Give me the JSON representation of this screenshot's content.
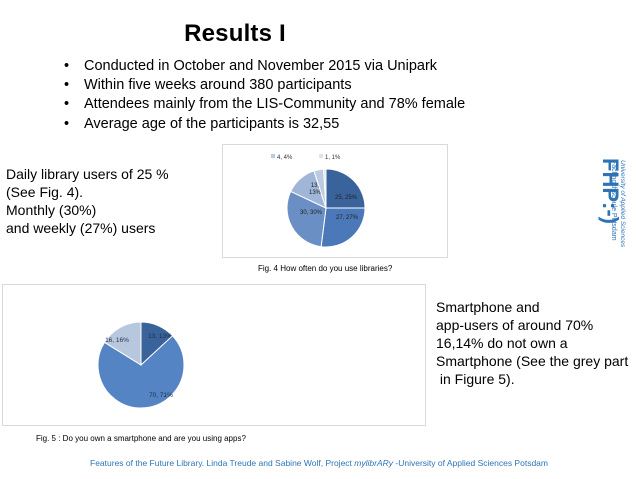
{
  "slide": {
    "title": "Results I",
    "bullets": [
      "Conducted in October and November 2015 via Unipark",
      "Within five weeks around 380 participants",
      "Attendees mainly from the LIS-Community and 78% female",
      "Average age of the participants is 32,55"
    ],
    "left_text": [
      "Daily library users of 25 %",
      "(See Fig. 4).",
      "Monthly (30%)",
      "and weekly (27%) users"
    ],
    "right_text": [
      "Smartphone and",
      "app-users of around 70%",
      "16,14% do not own a",
      "Smartphone (See the grey part",
      " in Figure 5)."
    ],
    "fig4_caption": "Fig. 4  How often do you use libraries?",
    "fig5_caption": "Fig. 5 : Do you own a smartphone and are you using apps?",
    "footer_pre": "Features of the Future Library. Linda Treude and Sabine Wolf, Project ",
    "footer_project": "mylibrARy",
    "footer_post": " -University of Applied Sciences Potsdam",
    "logo_text": "FHP:-)",
    "logo_sub1": "Fachhochschule Potsdam",
    "logo_sub2": "University of Applied Sciences",
    "logo_color": "#2e74b5"
  },
  "chart_data": [
    {
      "type": "pie",
      "title": "",
      "slices": [
        {
          "label": "25, 25%",
          "value": 25,
          "color": "#3a639c"
        },
        {
          "label": "27, 27%",
          "value": 27,
          "color": "#4a78b8"
        },
        {
          "label": "30, 30%",
          "value": 30,
          "color": "#6a8fc4"
        },
        {
          "label": "13, 13%",
          "value": 13,
          "color": "#9fb6d8"
        },
        {
          "label": "4, 4%",
          "value": 4,
          "color": "#bccbe2"
        },
        {
          "label": "1, 1%",
          "value": 1,
          "color": "#dbe3ef"
        }
      ],
      "legend_placement": "top"
    },
    {
      "type": "pie",
      "title": "",
      "slices": [
        {
          "label": "13, 13%",
          "value": 13,
          "color": "#3a639c"
        },
        {
          "label": "70, 71%",
          "value": 70,
          "color": "#5584c4"
        },
        {
          "label": "16, 16%",
          "value": 16,
          "color": "#b7c7de"
        }
      ]
    }
  ]
}
